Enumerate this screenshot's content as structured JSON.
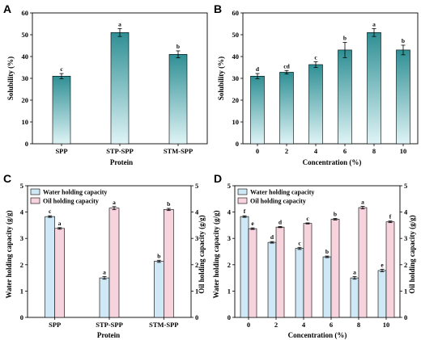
{
  "figure": {
    "background": "#ffffff"
  },
  "colors": {
    "solubility_top": "#2e8f94",
    "solubility_bottom": "#dff4f6",
    "water": "#cfe8f5",
    "oil": "#f6d3dd",
    "stroke": "#000000"
  },
  "chart_data": [
    {
      "type": "bar",
      "panel_label": "A",
      "categories": [
        "SPP",
        "STP-SPP",
        "STM-SPP"
      ],
      "values": [
        31,
        51,
        41
      ],
      "errors": [
        1.2,
        1.8,
        1.6
      ],
      "significance": [
        "c",
        "a",
        "b"
      ],
      "xlabel": "Protein",
      "ylabel": "Solubility (%)",
      "ylim": [
        0,
        60
      ],
      "yticks": [
        0,
        10,
        20,
        30,
        40,
        50,
        60
      ],
      "grid": false
    },
    {
      "type": "bar",
      "panel_label": "B",
      "categories": [
        "0",
        "2",
        "4",
        "6",
        "8",
        "10"
      ],
      "values": [
        31,
        32.8,
        36.3,
        43,
        51,
        43
      ],
      "errors": [
        1.2,
        0.8,
        1.3,
        3.5,
        1.8,
        2.2
      ],
      "significance": [
        "d",
        "cd",
        "c",
        "b",
        "a",
        "b"
      ],
      "xlabel": "Concentration (%)",
      "ylabel": "Solubility (%)",
      "ylim": [
        0,
        60
      ],
      "yticks": [
        0,
        10,
        20,
        30,
        40,
        50,
        60
      ],
      "grid": false
    },
    {
      "type": "bar",
      "panel_label": "C",
      "categories": [
        "SPP",
        "STP-SPP",
        "STM-SPP"
      ],
      "series": [
        {
          "name": "Water holding capacity",
          "values": [
            3.83,
            1.5,
            2.13
          ],
          "errors": [
            0.03,
            0.05,
            0.04
          ],
          "significance": [
            "c",
            "a",
            "b"
          ],
          "axis": "left"
        },
        {
          "name": "Oil holding capacity",
          "values": [
            3.38,
            4.15,
            4.1
          ],
          "errors": [
            0.03,
            0.06,
            0.04
          ],
          "significance": [
            "a",
            "a",
            "b"
          ],
          "axis": "right"
        }
      ],
      "xlabel": "Protein",
      "ylabel": "Water holding capacity (g/g)",
      "ylabel_right": "Oil holding capacity (g/g)",
      "ylim": [
        0,
        5
      ],
      "yticks": [
        0,
        1,
        2,
        3,
        4,
        5
      ],
      "legend": "top-left",
      "grid": false
    },
    {
      "type": "bar",
      "panel_label": "D",
      "categories": [
        "0",
        "2",
        "4",
        "6",
        "8",
        "10"
      ],
      "series": [
        {
          "name": "Water holding capacity",
          "values": [
            3.83,
            2.85,
            2.62,
            2.3,
            1.5,
            1.78
          ],
          "errors": [
            0.03,
            0.03,
            0.04,
            0.03,
            0.05,
            0.05
          ],
          "significance": [
            "f",
            "d",
            "c",
            "b",
            "a",
            "e"
          ],
          "axis": "left"
        },
        {
          "name": "Oil holding capacity",
          "values": [
            3.37,
            3.43,
            3.57,
            3.73,
            4.17,
            3.63
          ],
          "errors": [
            0.03,
            0.02,
            0.02,
            0.03,
            0.05,
            0.03
          ],
          "significance": [
            "e",
            "d",
            "c",
            "b",
            "a",
            "f"
          ],
          "axis": "right"
        }
      ],
      "xlabel": "Concentration (%)",
      "ylabel": "Water holding capacity (g/g)",
      "ylabel_right": "Oil holding capacity (g/g)",
      "ylim": [
        0,
        5
      ],
      "yticks": [
        0,
        1,
        2,
        3,
        4,
        5
      ],
      "legend": "top-left",
      "grid": false
    }
  ]
}
